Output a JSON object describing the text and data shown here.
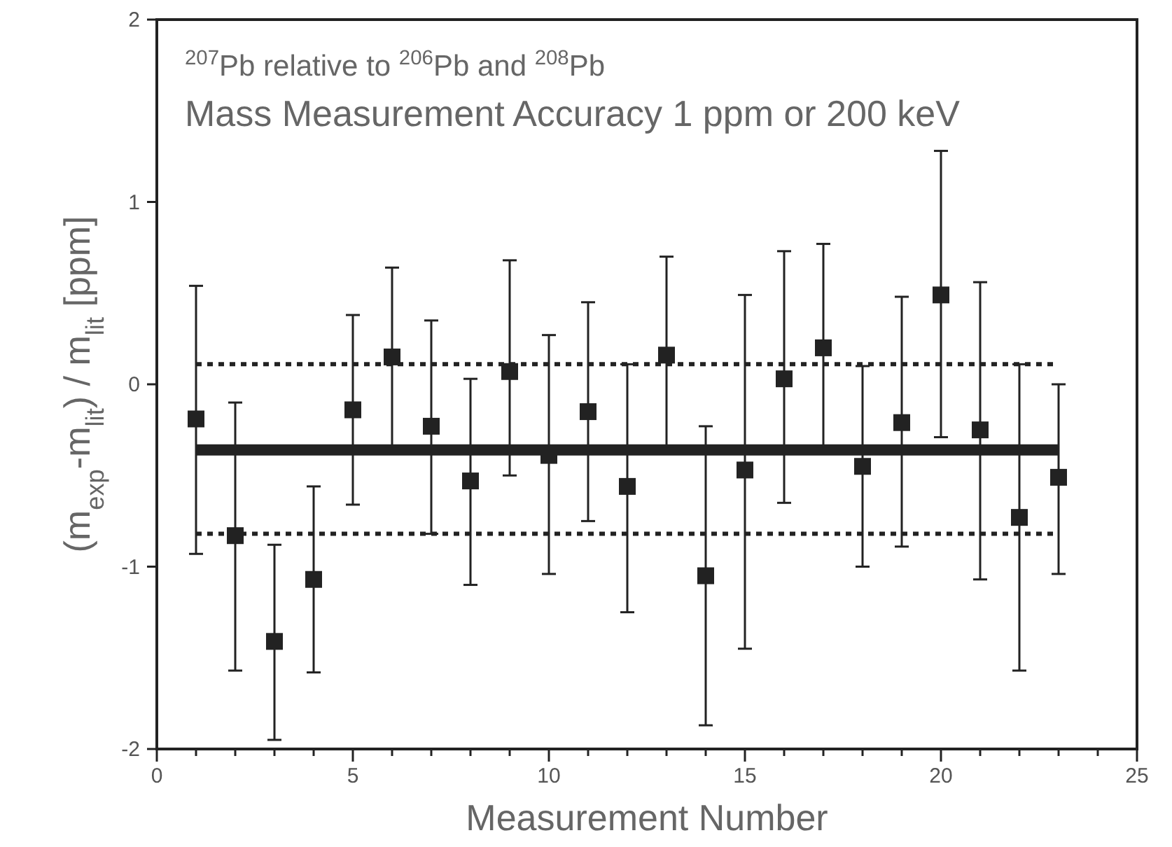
{
  "chart_data": {
    "type": "scatter",
    "title": "$^{207}$Pb relative to $^{206}$Pb and $^{208}$Pb",
    "subtitle": "Mass Measurement Accuracy 1 ppm or 200 keV",
    "xlabel": "Measurement Number",
    "ylabel": "(m$_{exp}$-m$_{lit}$) / m$_{lit}$ [ppm]",
    "x": [
      1,
      2,
      3,
      4,
      5,
      6,
      7,
      8,
      9,
      10,
      11,
      12,
      13,
      14,
      15,
      16,
      17,
      18,
      19,
      20,
      21,
      22,
      23
    ],
    "series": [
      {
        "color": "#222222",
        "values": [
          -0.19,
          -0.83,
          -1.41,
          -1.07,
          -0.14,
          0.15,
          -0.23,
          -0.53,
          0.07,
          -0.39,
          -0.15,
          -0.56,
          0.16,
          -1.05,
          -0.47,
          0.03,
          0.2,
          -0.45,
          -0.21,
          0.49,
          -0.25,
          -0.73,
          -0.51
        ],
        "errors": [
          [
            -0.93,
            0.54
          ],
          [
            -1.57,
            -0.1
          ],
          [
            -1.95,
            -0.88
          ],
          [
            -1.58,
            -0.56
          ],
          [
            -0.66,
            0.38
          ],
          [
            -0.34,
            0.64
          ],
          [
            -0.82,
            0.35
          ],
          [
            -1.1,
            0.03
          ],
          [
            -0.5,
            0.68
          ],
          [
            -1.04,
            0.27
          ],
          [
            -0.75,
            0.45
          ],
          [
            -1.25,
            0.11
          ],
          [
            -0.34,
            0.7
          ],
          [
            -1.87,
            -0.23
          ],
          [
            -1.45,
            0.49
          ],
          [
            -0.65,
            0.73
          ],
          [
            -0.34,
            0.77
          ],
          [
            -1.0,
            0.1
          ],
          [
            -0.89,
            0.48
          ],
          [
            -0.29,
            1.28
          ],
          [
            -1.07,
            0.56
          ],
          [
            -1.57,
            0.11
          ],
          [
            -1.04,
            0.0
          ]
        ]
      }
    ],
    "marker": "square",
    "grid": false,
    "xlim": [
      0,
      25
    ],
    "ylim": [
      -2,
      2
    ],
    "xticks": [
      0,
      {
        "value": 1,
        "label": null
      },
      {
        "value": 2,
        "label": null
      },
      {
        "value": 3,
        "label": null
      },
      {
        "value": 4,
        "label": null
      },
      5,
      {
        "value": 6,
        "label": null
      },
      {
        "value": 7,
        "label": null
      },
      {
        "value": 8,
        "label": null
      },
      {
        "value": 9,
        "label": null
      },
      10,
      {
        "value": 11,
        "label": null
      },
      {
        "value": 12,
        "label": null
      },
      {
        "value": 13,
        "label": null
      },
      {
        "value": 14,
        "label": null
      },
      15,
      {
        "value": 16,
        "label": null
      },
      {
        "value": 17,
        "label": null
      },
      {
        "value": 18,
        "label": null
      },
      {
        "value": 19,
        "label": null
      },
      20,
      {
        "value": 21,
        "label": null
      },
      {
        "value": 22,
        "label": null
      },
      {
        "value": 23,
        "label": null
      },
      {
        "value": 24,
        "label": null
      },
      25
    ],
    "yticks": [
      -2,
      -1,
      0,
      1,
      2
    ],
    "ref_lines": [
      {
        "axis": "y",
        "value": -0.36,
        "line_style": "solid",
        "color": "#222222"
      },
      {
        "axis": "y",
        "value": 0.11,
        "line_style": "dotted",
        "color": "#222222"
      },
      {
        "axis": "y",
        "value": -0.82,
        "line_style": "dotted",
        "color": "#222222"
      }
    ]
  }
}
